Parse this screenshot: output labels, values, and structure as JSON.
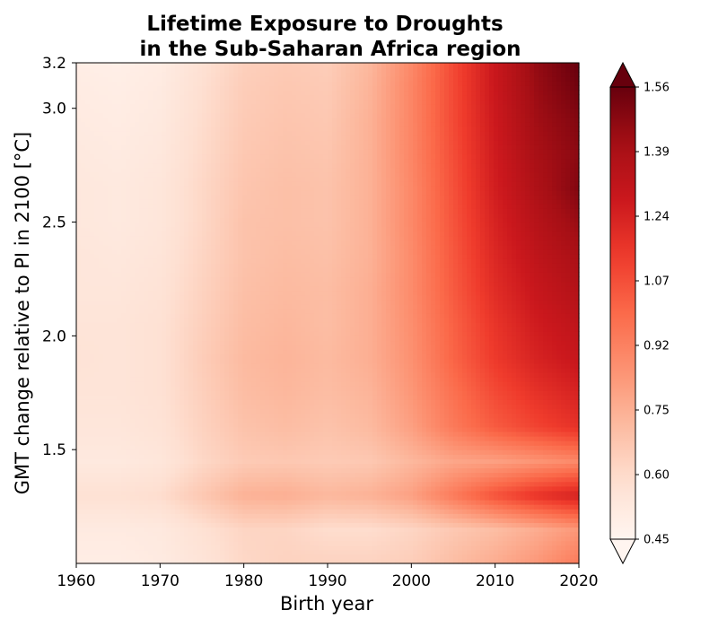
{
  "chart_data": {
    "type": "heatmap",
    "title_line1": "Lifetime Exposure to Droughts",
    "title_line2": "in the Sub-Saharan Africa region",
    "xlabel": "Birth year",
    "ylabel": "GMT change relative to PI in 2100 [°C]",
    "xlim": [
      1960,
      2020
    ],
    "ylim": [
      1.0,
      3.2
    ],
    "x_ticks": [
      1960,
      1970,
      1980,
      1990,
      2000,
      2010,
      2020
    ],
    "y_ticks": [
      3.2,
      3.0,
      2.5,
      2.0,
      1.5
    ],
    "colorbar": {
      "colormap": "Reds",
      "vmin": 0.45,
      "vmax": 1.56,
      "extend": "both",
      "ticks": [
        "1.56",
        "1.39",
        "1.24",
        "1.07",
        "0.92",
        "0.75",
        "0.60",
        "0.45"
      ]
    },
    "x": [
      1960,
      1965,
      1970,
      1975,
      1980,
      1985,
      1990,
      1995,
      2000,
      2005,
      2010,
      2015,
      2020
    ],
    "y": [
      1.0,
      1.15,
      1.3,
      1.45,
      1.6,
      1.75,
      1.9,
      2.05,
      2.2,
      2.35,
      2.5,
      2.65,
      2.8,
      2.95,
      3.1,
      3.2
    ],
    "values": [
      [
        0.5,
        0.5,
        0.52,
        0.56,
        0.62,
        0.64,
        0.64,
        0.64,
        0.66,
        0.72,
        0.78,
        0.85,
        0.95
      ],
      [
        0.52,
        0.52,
        0.53,
        0.58,
        0.63,
        0.63,
        0.6,
        0.6,
        0.63,
        0.68,
        0.72,
        0.78,
        0.85
      ],
      [
        0.58,
        0.58,
        0.6,
        0.68,
        0.76,
        0.77,
        0.74,
        0.76,
        0.82,
        0.95,
        1.08,
        1.18,
        1.25
      ],
      [
        0.53,
        0.53,
        0.55,
        0.62,
        0.67,
        0.68,
        0.67,
        0.68,
        0.74,
        0.8,
        0.82,
        0.86,
        0.9
      ],
      [
        0.55,
        0.55,
        0.57,
        0.64,
        0.7,
        0.72,
        0.7,
        0.73,
        0.82,
        0.95,
        1.05,
        1.12,
        1.18
      ],
      [
        0.56,
        0.56,
        0.58,
        0.65,
        0.72,
        0.74,
        0.72,
        0.75,
        0.85,
        0.98,
        1.1,
        1.18,
        1.24
      ],
      [
        0.57,
        0.56,
        0.58,
        0.66,
        0.73,
        0.75,
        0.73,
        0.77,
        0.87,
        1.02,
        1.15,
        1.24,
        1.3
      ],
      [
        0.56,
        0.56,
        0.58,
        0.65,
        0.72,
        0.74,
        0.72,
        0.77,
        0.88,
        1.03,
        1.17,
        1.27,
        1.33
      ],
      [
        0.55,
        0.55,
        0.57,
        0.64,
        0.71,
        0.73,
        0.72,
        0.77,
        0.89,
        1.05,
        1.2,
        1.3,
        1.37
      ],
      [
        0.55,
        0.54,
        0.56,
        0.63,
        0.7,
        0.72,
        0.71,
        0.76,
        0.89,
        1.06,
        1.22,
        1.33,
        1.4
      ],
      [
        0.54,
        0.53,
        0.55,
        0.62,
        0.7,
        0.71,
        0.7,
        0.76,
        0.9,
        1.07,
        1.24,
        1.36,
        1.45
      ],
      [
        0.54,
        0.53,
        0.55,
        0.62,
        0.69,
        0.71,
        0.7,
        0.76,
        0.9,
        1.08,
        1.26,
        1.39,
        1.5
      ],
      [
        0.53,
        0.52,
        0.54,
        0.61,
        0.68,
        0.7,
        0.69,
        0.76,
        0.91,
        1.09,
        1.27,
        1.41,
        1.48
      ],
      [
        0.52,
        0.51,
        0.53,
        0.6,
        0.67,
        0.69,
        0.68,
        0.76,
        0.91,
        1.1,
        1.28,
        1.43,
        1.5
      ],
      [
        0.51,
        0.5,
        0.52,
        0.59,
        0.66,
        0.68,
        0.67,
        0.75,
        0.91,
        1.1,
        1.29,
        1.45,
        1.54
      ],
      [
        0.5,
        0.49,
        0.51,
        0.58,
        0.65,
        0.67,
        0.66,
        0.74,
        0.9,
        1.1,
        1.29,
        1.46,
        1.56
      ]
    ]
  }
}
